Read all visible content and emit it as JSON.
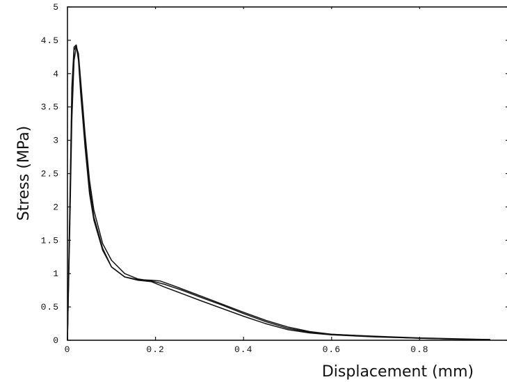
{
  "chart_data": {
    "type": "line",
    "xlabel": "Displacement (mm)",
    "ylabel": "Stress (MPa)",
    "xlim": [
      0,
      1.0
    ],
    "ylim": [
      0,
      5
    ],
    "x_ticks": [
      {
        "value": 0,
        "label": "0"
      },
      {
        "value": 0.2,
        "label": "0.2"
      },
      {
        "value": 0.4,
        "label": "0.4"
      },
      {
        "value": 0.6,
        "label": "0.6"
      },
      {
        "value": 0.8,
        "label": "0.8"
      }
    ],
    "y_ticks": [
      {
        "value": 0,
        "label": "0"
      },
      {
        "value": 0.5,
        "label": "0.5"
      },
      {
        "value": 1,
        "label": "1"
      },
      {
        "value": 1.5,
        "label": "1.5"
      },
      {
        "value": 2,
        "label": "2"
      },
      {
        "value": 2.5,
        "label": "2.5"
      },
      {
        "value": 3,
        "label": "3"
      },
      {
        "value": 3.5,
        "label": "3.5"
      },
      {
        "value": 4,
        "label": "4"
      },
      {
        "value": 4.5,
        "label": "4.5"
      },
      {
        "value": 5,
        "label": "5"
      }
    ],
    "grid": false,
    "series": [
      {
        "x": [
          0,
          0.005,
          0.01,
          0.015,
          0.02,
          0.025,
          0.03,
          0.04,
          0.05,
          0.06,
          0.08,
          0.1,
          0.13,
          0.16,
          0.19,
          0.22,
          0.26,
          0.3,
          0.35,
          0.4,
          0.45,
          0.5,
          0.55,
          0.6,
          0.7,
          0.8,
          0.9,
          0.96
        ],
        "y": [
          0,
          1.8,
          3.6,
          4.35,
          4.42,
          4.2,
          3.7,
          2.9,
          2.2,
          1.8,
          1.35,
          1.1,
          0.95,
          0.9,
          0.88,
          0.8,
          0.7,
          0.6,
          0.48,
          0.36,
          0.25,
          0.16,
          0.11,
          0.08,
          0.05,
          0.03,
          0.015,
          0.01
        ]
      },
      {
        "x": [
          0,
          0.005,
          0.01,
          0.015,
          0.02,
          0.025,
          0.03,
          0.04,
          0.05,
          0.06,
          0.08,
          0.1,
          0.13,
          0.16,
          0.19,
          0.22,
          0.26,
          0.3,
          0.35,
          0.4,
          0.45,
          0.5,
          0.55,
          0.6,
          0.7,
          0.8,
          0.9,
          0.96
        ],
        "y": [
          0,
          1.6,
          3.3,
          4.2,
          4.4,
          4.3,
          3.9,
          3.1,
          2.4,
          1.95,
          1.45,
          1.2,
          1.0,
          0.92,
          0.89,
          0.84,
          0.75,
          0.65,
          0.53,
          0.4,
          0.28,
          0.18,
          0.12,
          0.09,
          0.06,
          0.035,
          0.02,
          0.01
        ]
      },
      {
        "x": [
          0,
          0.005,
          0.01,
          0.015,
          0.02,
          0.025,
          0.03,
          0.04,
          0.05,
          0.06,
          0.08,
          0.1,
          0.13,
          0.16,
          0.19,
          0.21,
          0.24,
          0.28,
          0.32,
          0.36,
          0.4,
          0.45,
          0.5,
          0.55,
          0.6,
          0.7,
          0.8,
          0.9,
          0.96
        ],
        "y": [
          0,
          1.9,
          3.8,
          4.4,
          4.43,
          4.25,
          3.8,
          3.0,
          2.3,
          1.85,
          1.38,
          1.1,
          0.95,
          0.91,
          0.9,
          0.89,
          0.82,
          0.72,
          0.62,
          0.52,
          0.42,
          0.3,
          0.2,
          0.13,
          0.09,
          0.055,
          0.03,
          0.015,
          0.01
        ]
      }
    ]
  }
}
